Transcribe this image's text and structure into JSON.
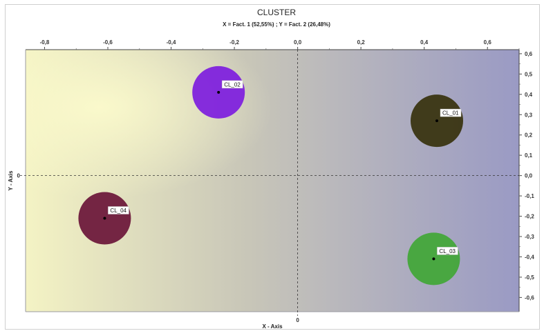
{
  "chart_data": {
    "type": "scatter",
    "title": "CLUSTER",
    "subtitle": "X = Fact. 1 (52,55%) ; Y = Fact. 2 (26,48%)",
    "xlabel": "X - Axis",
    "ylabel": "Y - Axis",
    "xlim": [
      -0.86,
      0.7
    ],
    "ylim": [
      -0.67,
      0.62
    ],
    "x_ticks": [
      -0.8,
      -0.6,
      -0.4,
      -0.2,
      0.0,
      0.2,
      0.4,
      0.6
    ],
    "x_tick_labels": [
      "-0,8",
      "-0,6",
      "-0,4",
      "-0,2",
      "0,0",
      "0,2",
      "0,4",
      "0,6"
    ],
    "y_ticks": [
      0.6,
      0.5,
      0.4,
      0.3,
      0.2,
      0.1,
      0.0,
      -0.1,
      -0.2,
      -0.3,
      -0.4,
      -0.5,
      -0.6
    ],
    "y_tick_labels": [
      "0,6",
      "0,5",
      "0,4",
      "0,3",
      "0,2",
      "0,1",
      "0,0",
      "-0,1",
      "-0,2",
      "-0,3",
      "-0,4",
      "-0,5",
      "-0,6"
    ],
    "x_zero_label": "0",
    "y_zero_label": "0",
    "grid": false,
    "zero_lines": true,
    "points": [
      {
        "label": "CL_01",
        "x": 0.44,
        "y": 0.27,
        "color": "#3a3512"
      },
      {
        "label": "CL_02",
        "x": -0.25,
        "y": 0.41,
        "color": "#7f22dd"
      },
      {
        "label": "CL_03",
        "x": 0.43,
        "y": -0.41,
        "color": "#43a63a"
      },
      {
        "label": "CL_04",
        "x": -0.61,
        "y": -0.21,
        "color": "#6e1a3c"
      }
    ],
    "background_gradient": {
      "left": "#f4f3c4",
      "right": "#9a9ac4"
    }
  }
}
